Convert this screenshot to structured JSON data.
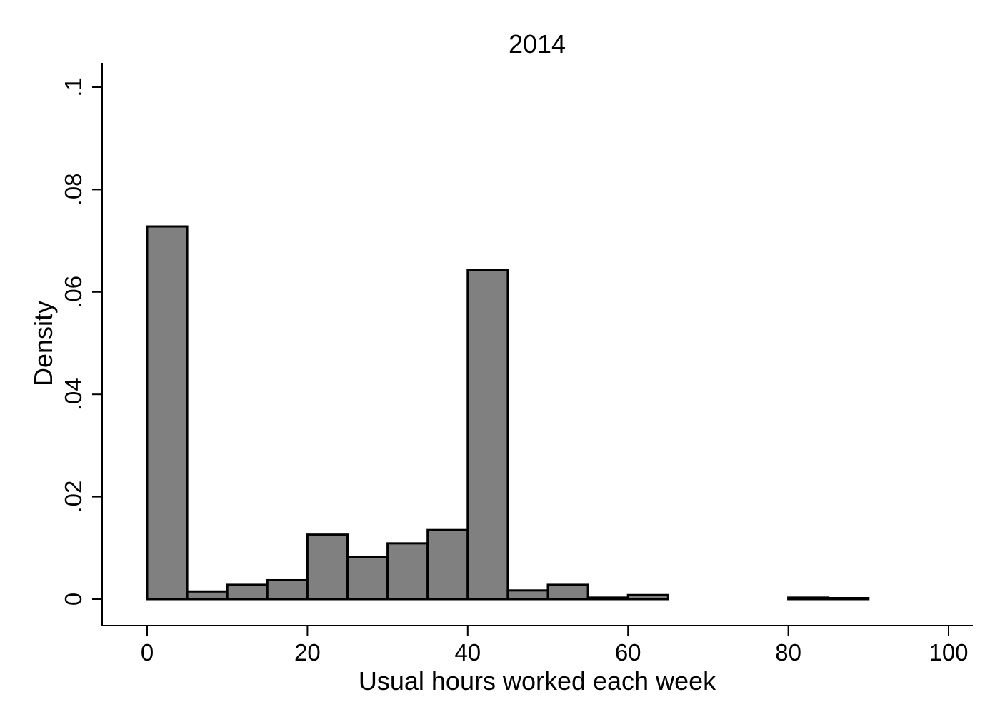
{
  "chart_data": {
    "type": "bar",
    "title": "2014",
    "xlabel": "Usual hours worked each week",
    "ylabel": "Density",
    "xlim": [
      0,
      100
    ],
    "ylim": [
      0,
      0.1
    ],
    "x_ticks": [
      {
        "value": 0,
        "label": "0"
      },
      {
        "value": 20,
        "label": "20"
      },
      {
        "value": 40,
        "label": "40"
      },
      {
        "value": 60,
        "label": "60"
      },
      {
        "value": 80,
        "label": "80"
      },
      {
        "value": 100,
        "label": "100"
      }
    ],
    "y_ticks": [
      {
        "value": 0,
        "label": "0"
      },
      {
        "value": 0.02,
        "label": ".02"
      },
      {
        "value": 0.04,
        "label": ".04"
      },
      {
        "value": 0.06,
        "label": ".06"
      },
      {
        "value": 0.08,
        "label": ".08"
      },
      {
        "value": 0.1,
        "label": ".1"
      }
    ],
    "bin_width": 5,
    "bins": [
      {
        "start": 0,
        "end": 5,
        "density": 0.0728
      },
      {
        "start": 5,
        "end": 10,
        "density": 0.0015
      },
      {
        "start": 10,
        "end": 15,
        "density": 0.0028
      },
      {
        "start": 15,
        "end": 20,
        "density": 0.0037
      },
      {
        "start": 20,
        "end": 25,
        "density": 0.0126
      },
      {
        "start": 25,
        "end": 30,
        "density": 0.0083
      },
      {
        "start": 30,
        "end": 35,
        "density": 0.0109
      },
      {
        "start": 35,
        "end": 40,
        "density": 0.0135
      },
      {
        "start": 40,
        "end": 45,
        "density": 0.0643
      },
      {
        "start": 45,
        "end": 50,
        "density": 0.0017
      },
      {
        "start": 50,
        "end": 55,
        "density": 0.0028
      },
      {
        "start": 55,
        "end": 60,
        "density": 0.0003
      },
      {
        "start": 60,
        "end": 65,
        "density": 0.0008
      },
      {
        "start": 65,
        "end": 70,
        "density": 0
      },
      {
        "start": 70,
        "end": 75,
        "density": 0
      },
      {
        "start": 75,
        "end": 80,
        "density": 0
      },
      {
        "start": 80,
        "end": 85,
        "density": 0.0003
      },
      {
        "start": 85,
        "end": 90,
        "density": 0.0001
      }
    ],
    "colors": {
      "bar_fill": "#808080",
      "bar_stroke": "#000000",
      "background": "#ffffff"
    },
    "grid": false,
    "legend": "none"
  }
}
